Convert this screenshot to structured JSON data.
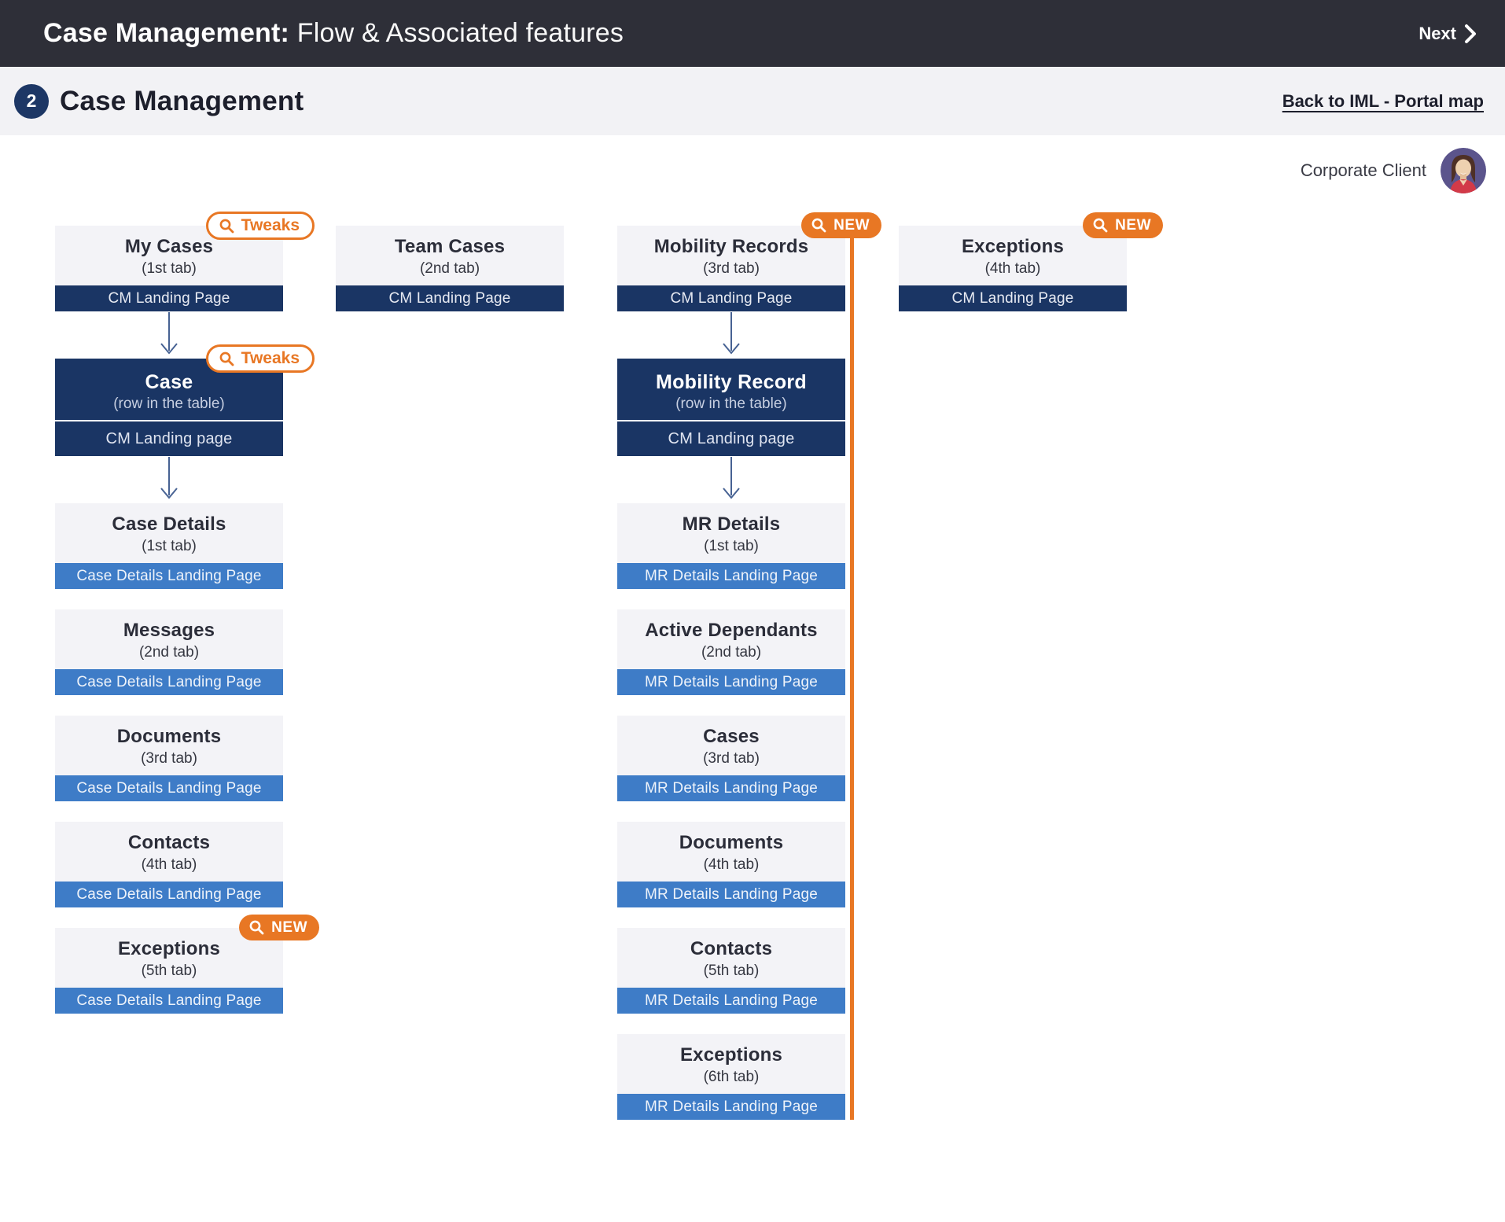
{
  "header": {
    "title_bold": "Case Management:",
    "title_rest": "Flow & Associated features",
    "next_label": "Next"
  },
  "subheader": {
    "step_number": "2",
    "title": "Case Management",
    "back_link": "Back to IML - Portal map"
  },
  "user": {
    "label": "Corporate Client",
    "avatar_description": "woman-avatar"
  },
  "badges": {
    "tweaks_label": "Tweaks",
    "new_label": "NEW",
    "magnifier_icon": "search-icon"
  },
  "colors": {
    "topbar": "#2e2f38",
    "subheader_bg": "#f2f2f5",
    "card_bg": "#f3f3f7",
    "navy": "#1a3564",
    "blue": "#3e7cc7",
    "orange": "#e87724",
    "arrow": "#476293"
  },
  "flow": {
    "columns": [
      {
        "name": "my-cases-column",
        "items": [
          {
            "type": "tab-card",
            "title": "My Cases",
            "subtitle": "(1st tab)",
            "bar": "CM Landing Page",
            "bar_style": "navy",
            "badge": "tweaks"
          },
          {
            "type": "arrow"
          },
          {
            "type": "row-card",
            "title": "Case",
            "subtitle": "(row in the table)",
            "bar": "CM Landing page",
            "badge": "tweaks"
          },
          {
            "type": "arrow"
          },
          {
            "type": "tab-card",
            "title": "Case Details",
            "subtitle": "(1st tab)",
            "bar": "Case Details Landing Page",
            "bar_style": "blue"
          },
          {
            "type": "tab-card",
            "title": "Messages",
            "subtitle": "(2nd tab)",
            "bar": "Case Details Landing Page",
            "bar_style": "blue"
          },
          {
            "type": "tab-card",
            "title": "Documents",
            "subtitle": "(3rd tab)",
            "bar": "Case Details Landing Page",
            "bar_style": "blue"
          },
          {
            "type": "tab-card",
            "title": "Contacts",
            "subtitle": "(4th tab)",
            "bar": "Case Details Landing Page",
            "bar_style": "blue"
          },
          {
            "type": "tab-card",
            "title": "Exceptions",
            "subtitle": "(5th tab)",
            "bar": "Case Details Landing Page",
            "bar_style": "blue",
            "badge": "new"
          }
        ]
      },
      {
        "name": "team-cases-column",
        "items": [
          {
            "type": "tab-card",
            "title": "Team Cases",
            "subtitle": "(2nd tab)",
            "bar": "CM Landing Page",
            "bar_style": "navy"
          }
        ]
      },
      {
        "name": "mobility-records-column",
        "has_new_section_line": true,
        "items": [
          {
            "type": "tab-card",
            "title": "Mobility Records",
            "subtitle": "(3rd tab)",
            "bar": "CM Landing Page",
            "bar_style": "navy",
            "badge": "new"
          },
          {
            "type": "arrow"
          },
          {
            "type": "row-card",
            "title": "Mobility Record",
            "subtitle": "(row in the table)",
            "bar": "CM Landing page"
          },
          {
            "type": "arrow"
          },
          {
            "type": "tab-card",
            "title": "MR Details",
            "subtitle": "(1st tab)",
            "bar": "MR Details Landing Page",
            "bar_style": "blue"
          },
          {
            "type": "tab-card",
            "title": "Active Dependants",
            "subtitle": "(2nd tab)",
            "bar": "MR Details Landing Page",
            "bar_style": "blue"
          },
          {
            "type": "tab-card",
            "title": "Cases",
            "subtitle": "(3rd tab)",
            "bar": "MR Details Landing Page",
            "bar_style": "blue"
          },
          {
            "type": "tab-card",
            "title": "Documents",
            "subtitle": "(4th tab)",
            "bar": "MR Details Landing Page",
            "bar_style": "blue"
          },
          {
            "type": "tab-card",
            "title": "Contacts",
            "subtitle": "(5th tab)",
            "bar": "MR Details Landing Page",
            "bar_style": "blue"
          },
          {
            "type": "tab-card",
            "title": "Exceptions",
            "subtitle": "(6th tab)",
            "bar": "MR Details Landing Page",
            "bar_style": "blue"
          }
        ]
      },
      {
        "name": "exceptions-column",
        "items": [
          {
            "type": "tab-card",
            "title": "Exceptions",
            "subtitle": "(4th tab)",
            "bar": "CM Landing Page",
            "bar_style": "navy",
            "badge": "new"
          }
        ]
      }
    ]
  }
}
